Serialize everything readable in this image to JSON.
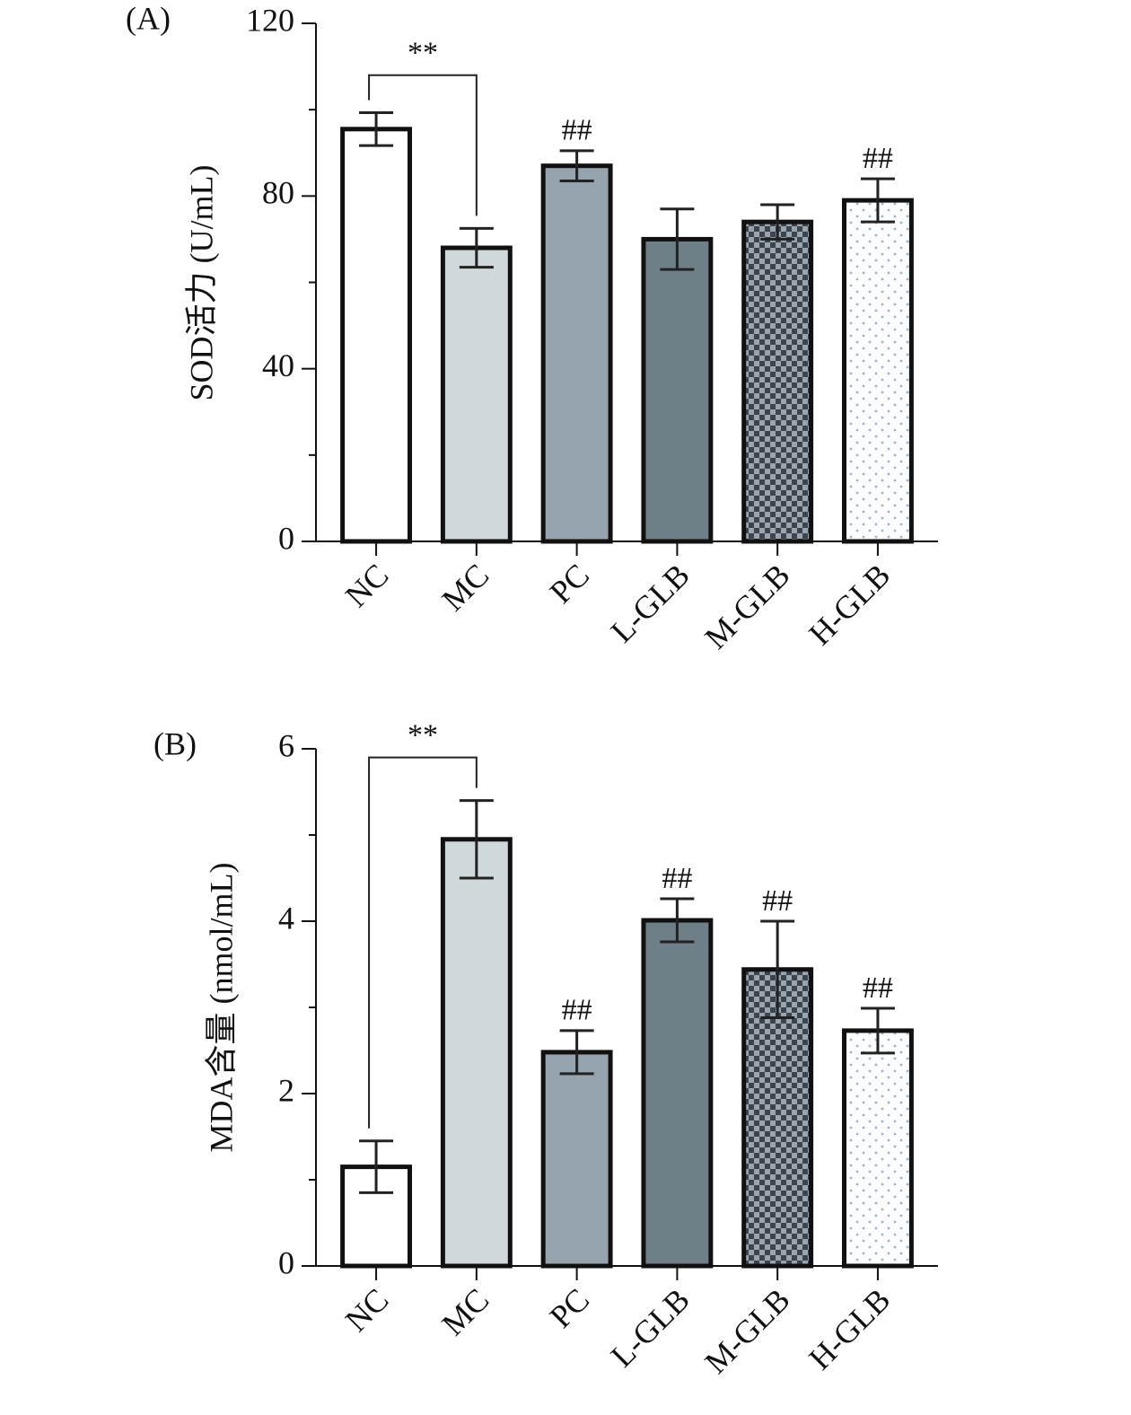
{
  "chart_data": [
    {
      "type": "bar",
      "panel": "(A)",
      "y_label": "SOD活力 (U/mL)",
      "categories": [
        "NC",
        "MC",
        "PC",
        "L-GLB",
        "M-GLB",
        "H-GLB"
      ],
      "values": [
        95.5,
        68,
        87,
        70,
        74,
        79
      ],
      "errors": [
        3.8,
        4.5,
        3.5,
        7,
        4,
        5
      ],
      "colors": [
        "#ffffff",
        "#cfd8da",
        "#95a3ae",
        "#6e7f88",
        "#5a6670",
        "#f4f6f8"
      ],
      "patterns": [
        null,
        null,
        null,
        null,
        "checker",
        "dots"
      ],
      "bar_labels": [
        null,
        null,
        "##",
        null,
        null,
        "##"
      ],
      "significance": [
        {
          "text": "**",
          "from": 0,
          "to": 1,
          "y": 108
        }
      ],
      "ylim": [
        0,
        120
      ],
      "yticks": [
        0,
        40,
        80,
        120
      ],
      "minor_yticks": [
        20,
        60,
        100
      ]
    },
    {
      "type": "bar",
      "panel": "(B)",
      "y_label": "MDA含量 (nmol/mL)",
      "categories": [
        "NC",
        "MC",
        "PC",
        "L-GLB",
        "M-GLB",
        "H-GLB"
      ],
      "values": [
        1.15,
        4.95,
        2.48,
        4.01,
        3.44,
        2.73
      ],
      "errors": [
        0.3,
        0.45,
        0.25,
        0.25,
        0.56,
        0.26
      ],
      "colors": [
        "#ffffff",
        "#cfd8da",
        "#95a3ae",
        "#6e7f88",
        "#5a6670",
        "#f4f6f8"
      ],
      "patterns": [
        null,
        null,
        null,
        null,
        "checker",
        "dots"
      ],
      "bar_labels": [
        null,
        null,
        "##",
        "##",
        "##",
        "##"
      ],
      "significance": [
        {
          "text": "**",
          "from": 0,
          "to": 1,
          "y": 5.9
        }
      ],
      "ylim": [
        0,
        6
      ],
      "yticks": [
        0,
        2,
        4,
        6
      ],
      "minor_yticks": [
        1,
        3,
        5
      ]
    }
  ]
}
